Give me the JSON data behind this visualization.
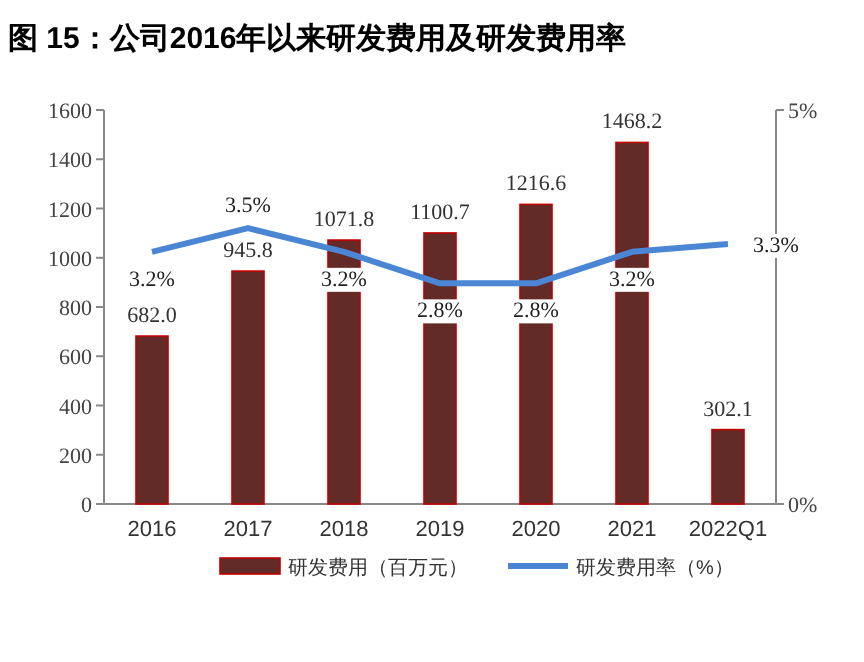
{
  "chart_data": {
    "type": "bar",
    "title": "图 15：公司2016年以来研发费用及研发费用率",
    "categories": [
      "2016",
      "2017",
      "2018",
      "2019",
      "2020",
      "2021",
      "2022Q1"
    ],
    "series": [
      {
        "name": "研发费用（百万元）",
        "color": "#632b27",
        "values": [
          682.0,
          945.8,
          1071.8,
          1100.7,
          1216.6,
          1468.2,
          302.1
        ],
        "value_labels": [
          "682.0",
          "945.8",
          "1071.8",
          "1100.7",
          "1216.6",
          "1468.2",
          "302.1"
        ]
      },
      {
        "name": "研发费用率（%）",
        "type": "line",
        "axis": "y2",
        "color": "#4a86d4",
        "values": [
          3.2,
          3.5,
          3.2,
          2.8,
          2.8,
          3.2,
          3.3
        ],
        "value_labels": [
          "3.2%",
          "3.5%",
          "3.2%",
          "2.8%",
          "2.8%",
          "3.2%",
          "3.3%"
        ]
      }
    ],
    "ylim": [
      0,
      1600
    ],
    "yticks": [
      0,
      200,
      400,
      600,
      800,
      1000,
      1200,
      1400,
      1600
    ],
    "y2lim": [
      0,
      5
    ],
    "y2ticks": [
      {
        "value": 0,
        "label": "0%"
      },
      {
        "value": 5,
        "label": "5%"
      }
    ],
    "legend": "bottom",
    "grid": false
  }
}
